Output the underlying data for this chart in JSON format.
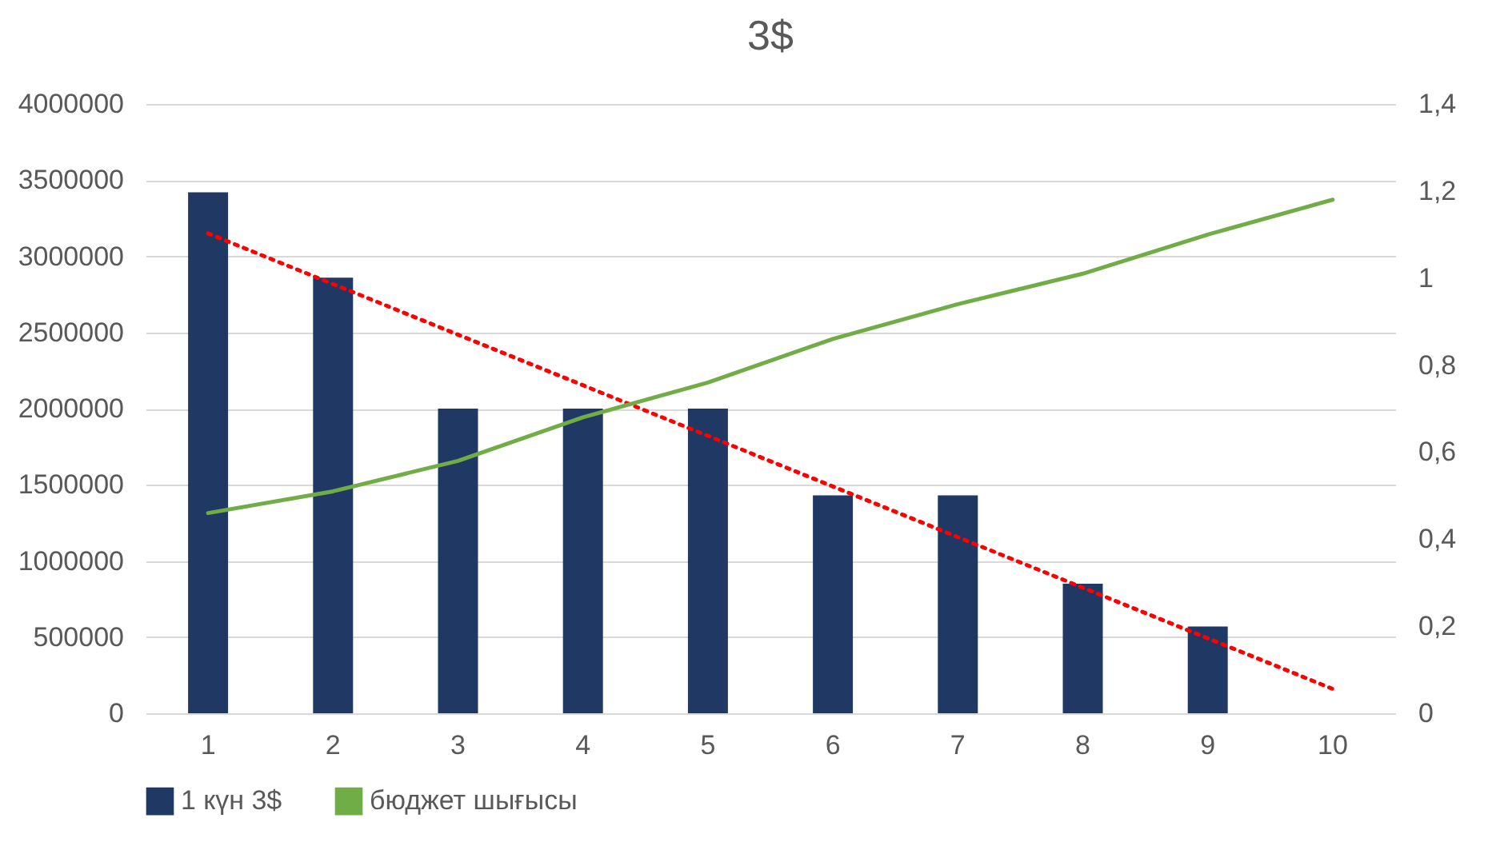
{
  "chart_data": {
    "type": "bar",
    "title": "3$",
    "categories": [
      "1",
      "2",
      "3",
      "4",
      "5",
      "6",
      "7",
      "8",
      "9",
      "10"
    ],
    "series": [
      {
        "name": "1 күн 3$",
        "color": "#203864",
        "values": [
          3420000,
          2860000,
          2000000,
          2000000,
          2000000,
          1430000,
          1430000,
          850000,
          570000,
          null
        ]
      },
      {
        "name": "бюджет шығысы",
        "type": "line",
        "axis": "y2",
        "color": "#70ad47",
        "values": [
          0.46,
          0.51,
          0.58,
          0.68,
          0.76,
          0.86,
          0.94,
          1.01,
          1.1,
          1.18
        ]
      },
      {
        "type": "line",
        "color": "#ff0000",
        "line_style": "dotted",
        "x": [
          "1",
          "10"
        ],
        "values": [
          3150000,
          160000
        ]
      }
    ],
    "ylim": [
      0,
      4000000
    ],
    "yticks": [
      0,
      500000,
      1000000,
      1500000,
      2000000,
      2500000,
      3000000,
      3500000,
      4000000
    ],
    "y2lim": [
      0,
      1.4
    ],
    "y2ticks": [
      0,
      {
        "value": 0.2,
        "label": "0,2"
      },
      {
        "value": 0.4,
        "label": "0,4"
      },
      {
        "value": 0.6,
        "label": "0,6"
      },
      {
        "value": 0.8,
        "label": "0,8"
      },
      {
        "value": 1,
        "label": "1"
      },
      {
        "value": 1.2,
        "label": "1,2"
      },
      {
        "value": 1.4,
        "label": "1,4"
      }
    ],
    "grid": "y",
    "legend": "bottom"
  }
}
